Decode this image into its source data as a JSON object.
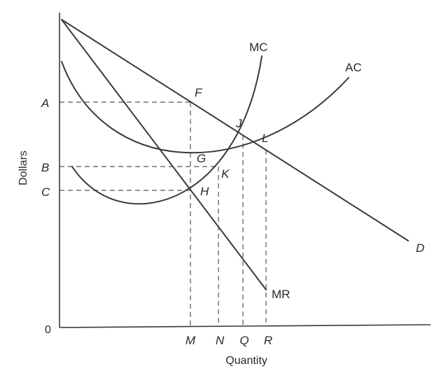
{
  "axes": {
    "y_label": "Dollars",
    "x_label": "Quantity",
    "origin": "0"
  },
  "price_ticks": [
    "A",
    "B",
    "C"
  ],
  "quantity_ticks": [
    "M",
    "N",
    "Q",
    "R"
  ],
  "curves": {
    "mc": "MC",
    "ac": "AC",
    "mr": "MR",
    "demand": "D"
  },
  "points": {
    "F": "F",
    "J": "J",
    "L": "L",
    "G": "G",
    "K": "K",
    "H": "H"
  },
  "colors": {
    "ink": "#3a3a3a",
    "background": "#ffffff"
  }
}
